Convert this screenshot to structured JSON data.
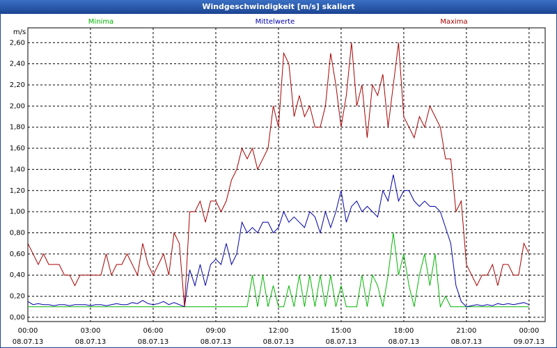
{
  "chart_data": {
    "type": "line",
    "title": "Windgeschwindigkeit [m/s] skaliert",
    "y_label": "m/s",
    "x": [
      0,
      0.25,
      0.5,
      0.75,
      1,
      1.25,
      1.5,
      1.75,
      2,
      2.25,
      2.5,
      2.75,
      3,
      3.25,
      3.5,
      3.75,
      4,
      4.25,
      4.5,
      4.75,
      5,
      5.25,
      5.5,
      5.75,
      6,
      6.25,
      6.5,
      6.75,
      7,
      7.25,
      7.5,
      7.75,
      8,
      8.25,
      8.5,
      8.75,
      9,
      9.25,
      9.5,
      9.75,
      10,
      10.25,
      10.5,
      10.75,
      11,
      11.25,
      11.5,
      11.75,
      12,
      12.25,
      12.5,
      12.75,
      13,
      13.25,
      13.5,
      13.75,
      14,
      14.25,
      14.5,
      14.75,
      15,
      15.25,
      15.5,
      15.75,
      16,
      16.25,
      16.5,
      16.75,
      17,
      17.25,
      17.5,
      17.75,
      18,
      18.25,
      18.5,
      18.75,
      19,
      19.25,
      19.5,
      19.75,
      20,
      20.25,
      20.5,
      20.75,
      21,
      21.25,
      21.5,
      21.75,
      22,
      22.25,
      22.5,
      22.75,
      23,
      23.25,
      23.5,
      23.75,
      24
    ],
    "series": [
      {
        "name": "Minima",
        "color": "#00b400",
        "values": [
          0.1,
          0.1,
          0.1,
          0.1,
          0.1,
          0.1,
          0.1,
          0.1,
          0.1,
          0.1,
          0.1,
          0.1,
          0.1,
          0.1,
          0.1,
          0.1,
          0.1,
          0.1,
          0.1,
          0.1,
          0.1,
          0.1,
          0.1,
          0.1,
          0.1,
          0.1,
          0.1,
          0.1,
          0.1,
          0.1,
          0.1,
          0.1,
          0.1,
          0.1,
          0.1,
          0.1,
          0.1,
          0.1,
          0.1,
          0.1,
          0.1,
          0.1,
          0.1,
          0.4,
          0.1,
          0.4,
          0.1,
          0.3,
          0.1,
          0.1,
          0.3,
          0.1,
          0.4,
          0.1,
          0.4,
          0.1,
          0.4,
          0.1,
          0.4,
          0.1,
          0.3,
          0.1,
          0.1,
          0.1,
          0.4,
          0.1,
          0.4,
          0.3,
          0.1,
          0.4,
          0.8,
          0.4,
          0.6,
          0.3,
          0.1,
          0.4,
          0.6,
          0.3,
          0.6,
          0.1,
          0.2,
          0.1,
          0.1,
          0.1,
          0.1,
          0.1,
          0.1,
          0.1,
          0.1,
          0.1,
          0.1,
          0.1,
          0.1,
          0.1,
          0.1,
          0.1,
          0.1
        ]
      },
      {
        "name": "Mittelwerte",
        "color": "#0000a8",
        "values": [
          0.15,
          0.12,
          0.13,
          0.12,
          0.12,
          0.11,
          0.12,
          0.12,
          0.11,
          0.12,
          0.12,
          0.12,
          0.11,
          0.12,
          0.12,
          0.11,
          0.12,
          0.13,
          0.12,
          0.12,
          0.14,
          0.13,
          0.16,
          0.13,
          0.12,
          0.13,
          0.15,
          0.12,
          0.14,
          0.12,
          0.1,
          0.45,
          0.3,
          0.5,
          0.3,
          0.5,
          0.55,
          0.5,
          0.7,
          0.5,
          0.6,
          0.9,
          0.8,
          0.85,
          0.8,
          0.9,
          0.9,
          0.8,
          0.85,
          1.0,
          0.9,
          0.95,
          0.9,
          0.85,
          1.0,
          0.95,
          0.8,
          1.0,
          0.85,
          1.0,
          1.2,
          0.9,
          1.05,
          1.1,
          1.0,
          1.05,
          1.0,
          0.95,
          1.2,
          1.1,
          1.35,
          1.1,
          1.2,
          1.2,
          1.1,
          1.05,
          1.1,
          1.05,
          1.05,
          1.0,
          0.85,
          0.7,
          0.3,
          0.15,
          0.1,
          0.11,
          0.12,
          0.11,
          0.12,
          0.11,
          0.13,
          0.12,
          0.13,
          0.12,
          0.13,
          0.14,
          0.12
        ]
      },
      {
        "name": "Maxima",
        "color": "#a80000",
        "values": [
          0.7,
          0.6,
          0.5,
          0.6,
          0.5,
          0.5,
          0.5,
          0.4,
          0.4,
          0.3,
          0.4,
          0.4,
          0.4,
          0.4,
          0.4,
          0.6,
          0.4,
          0.5,
          0.5,
          0.6,
          0.5,
          0.4,
          0.7,
          0.5,
          0.4,
          0.5,
          0.6,
          0.4,
          0.8,
          0.7,
          0.1,
          1.0,
          1.0,
          1.1,
          0.9,
          1.1,
          1.1,
          1.0,
          1.1,
          1.3,
          1.4,
          1.6,
          1.5,
          1.6,
          1.4,
          1.5,
          1.6,
          2.0,
          1.8,
          2.5,
          2.4,
          1.9,
          2.1,
          1.9,
          2.0,
          1.8,
          1.8,
          2.0,
          2.5,
          2.2,
          1.8,
          2.1,
          2.6,
          2.0,
          2.2,
          1.7,
          2.2,
          2.1,
          2.3,
          1.8,
          2.2,
          2.6,
          1.9,
          1.8,
          1.7,
          1.9,
          1.8,
          2.0,
          1.9,
          1.8,
          1.5,
          1.5,
          1.0,
          1.1,
          0.5,
          0.4,
          0.3,
          0.4,
          0.4,
          0.5,
          0.3,
          0.5,
          0.5,
          0.4,
          0.4,
          0.7,
          0.6
        ]
      }
    ],
    "xlim": [
      0,
      24.77
    ],
    "ylim": [
      -0.04,
      2.74
    ],
    "grid": true,
    "xticks": [
      {
        "value": 0,
        "label": "00:00",
        "sublabel": "08.07.13"
      },
      {
        "value": 3,
        "label": "03:00",
        "sublabel": "08.07.13"
      },
      {
        "value": 6,
        "label": "06:00",
        "sublabel": "08.07.13"
      },
      {
        "value": 9,
        "label": "09:00",
        "sublabel": "08.07.13"
      },
      {
        "value": 12,
        "label": "12:00",
        "sublabel": "08.07.13"
      },
      {
        "value": 15,
        "label": "15:00",
        "sublabel": "08.07.13"
      },
      {
        "value": 18,
        "label": "18:00",
        "sublabel": "08.07.13"
      },
      {
        "value": 21,
        "label": "21:00",
        "sublabel": "08.07.13"
      },
      {
        "value": 24,
        "label": "00:00",
        "sublabel": "09.07.13"
      }
    ],
    "yticks": [
      {
        "value": 0,
        "label": "0,00"
      },
      {
        "value": 0.2,
        "label": "0,20"
      },
      {
        "value": 0.4,
        "label": "0,40"
      },
      {
        "value": 0.6,
        "label": "0,60"
      },
      {
        "value": 0.8,
        "label": "0,80"
      },
      {
        "value": 1.0,
        "label": "1,00"
      },
      {
        "value": 1.2,
        "label": "1,20"
      },
      {
        "value": 1.4,
        "label": "1,40"
      },
      {
        "value": 1.6,
        "label": "1,60"
      },
      {
        "value": 1.8,
        "label": "1,80"
      },
      {
        "value": 2.0,
        "label": "2,00"
      },
      {
        "value": 2.2,
        "label": "2,20"
      },
      {
        "value": 2.4,
        "label": "2,40"
      },
      {
        "value": 2.6,
        "label": "2,60"
      }
    ]
  }
}
